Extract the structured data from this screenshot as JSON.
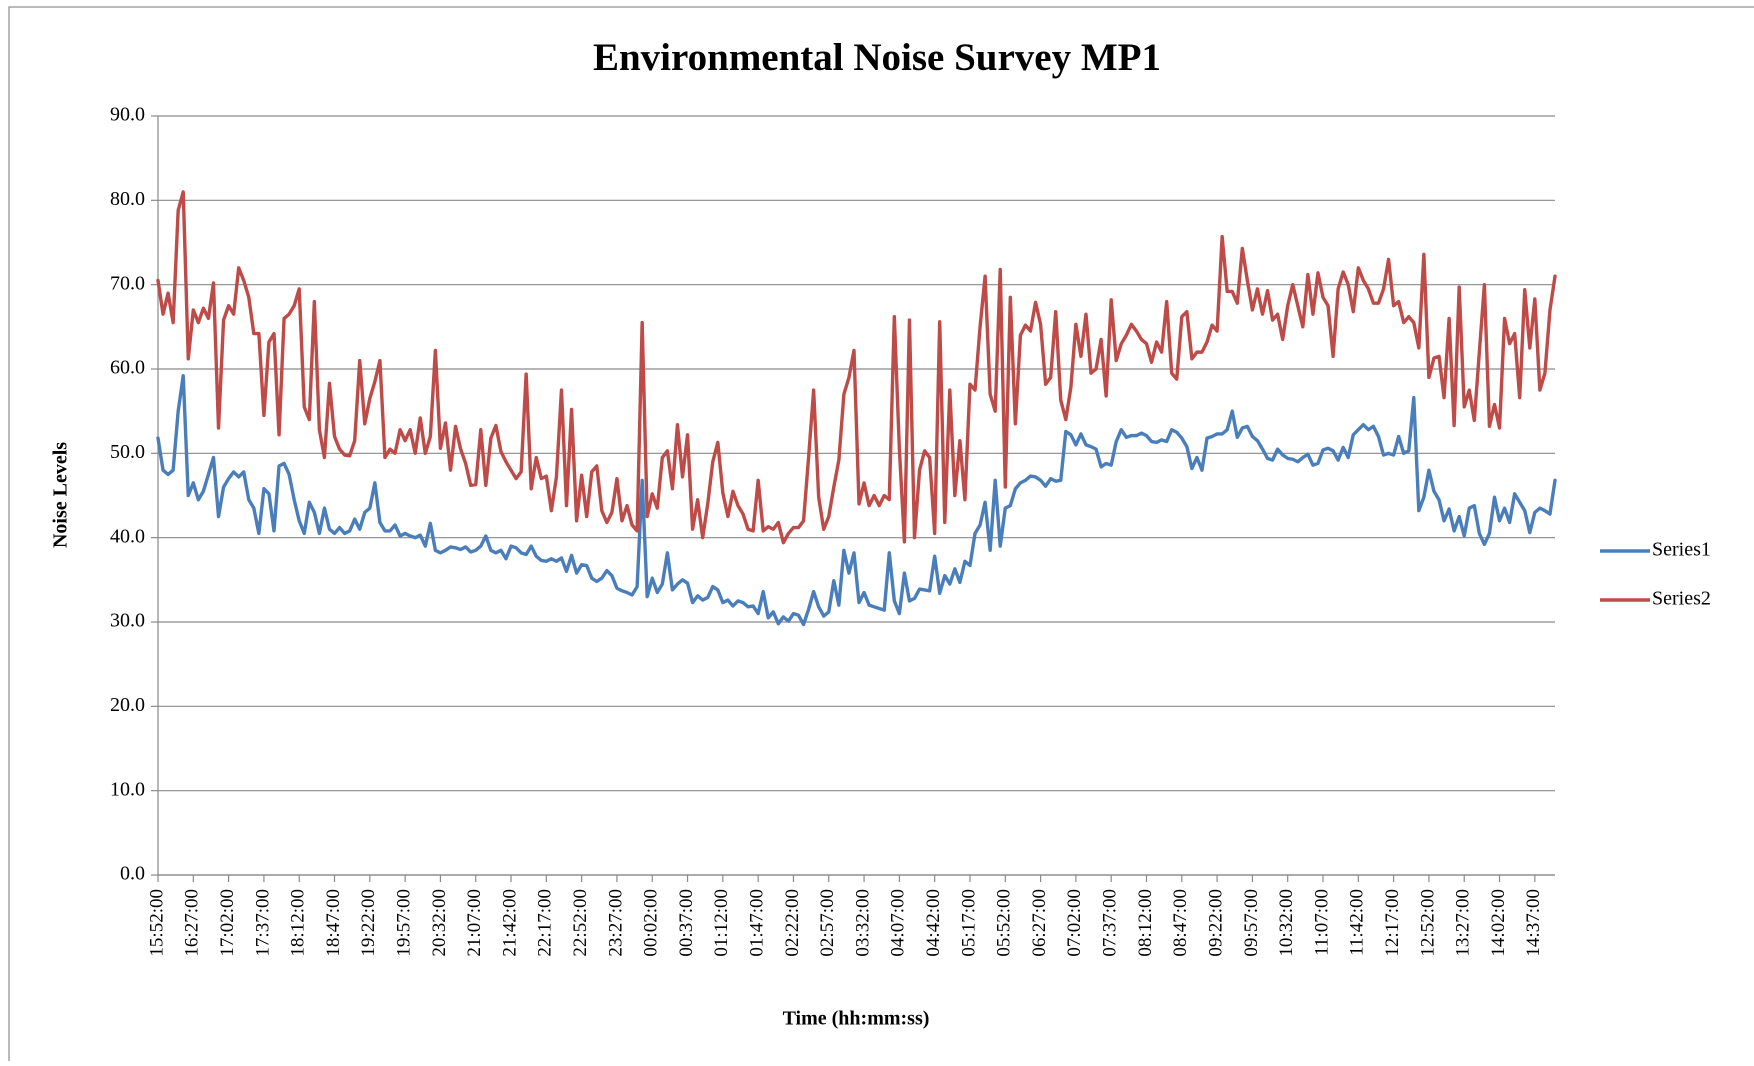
{
  "chart_data": {
    "type": "line",
    "title": "Environmental Noise Survey MP1",
    "x_label": "Time (hh:mm:ss)",
    "y_label": "Noise Levels",
    "categories": [
      "15:52:00",
      null,
      null,
      null,
      null,
      null,
      null,
      "16:27:00",
      null,
      null,
      null,
      null,
      null,
      null,
      "17:02:00",
      null,
      null,
      null,
      null,
      null,
      null,
      "17:37:00",
      null,
      null,
      null,
      null,
      null,
      null,
      "18:12:00",
      null,
      null,
      null,
      null,
      null,
      null,
      "18:47:00",
      null,
      null,
      null,
      null,
      null,
      null,
      "19:22:00",
      null,
      null,
      null,
      null,
      null,
      null,
      "19:57:00",
      null,
      null,
      null,
      null,
      null,
      null,
      "20:32:00",
      null,
      null,
      null,
      null,
      null,
      null,
      "21:07:00",
      null,
      null,
      null,
      null,
      null,
      null,
      "21:42:00",
      null,
      null,
      null,
      null,
      null,
      null,
      "22:17:00",
      null,
      null,
      null,
      null,
      null,
      null,
      "22:52:00",
      null,
      null,
      null,
      null,
      null,
      null,
      "23:27:00",
      null,
      null,
      null,
      null,
      null,
      null,
      "00:02:00",
      null,
      null,
      null,
      null,
      null,
      null,
      "00:37:00",
      null,
      null,
      null,
      null,
      null,
      null,
      "01:12:00",
      null,
      null,
      null,
      null,
      null,
      null,
      "01:47:00",
      null,
      null,
      null,
      null,
      null,
      null,
      "02:22:00",
      null,
      null,
      null,
      null,
      null,
      null,
      "02:57:00",
      null,
      null,
      null,
      null,
      null,
      null,
      "03:32:00",
      null,
      null,
      null,
      null,
      null,
      null,
      "04:07:00",
      null,
      null,
      null,
      null,
      null,
      null,
      "04:42:00",
      null,
      null,
      null,
      null,
      null,
      null,
      "05:17:00",
      null,
      null,
      null,
      null,
      null,
      null,
      "05:52:00",
      null,
      null,
      null,
      null,
      null,
      null,
      "06:27:00",
      null,
      null,
      null,
      null,
      null,
      null,
      "07:02:00",
      null,
      null,
      null,
      null,
      null,
      null,
      "07:37:00",
      null,
      null,
      null,
      null,
      null,
      null,
      "08:12:00",
      null,
      null,
      null,
      null,
      null,
      null,
      "08:47:00",
      null,
      null,
      null,
      null,
      null,
      null,
      "09:22:00",
      null,
      null,
      null,
      null,
      null,
      null,
      "09:57:00",
      null,
      null,
      null,
      null,
      null,
      null,
      "10:32:00",
      null,
      null,
      null,
      null,
      null,
      null,
      "11:07:00",
      null,
      null,
      null,
      null,
      null,
      null,
      "11:42:00",
      null,
      null,
      null,
      null,
      null,
      null,
      "12:17:00",
      null,
      null,
      null,
      null,
      null,
      null,
      "12:52:00",
      null,
      null,
      null,
      null,
      null,
      null,
      "13:27:00",
      null,
      null,
      null,
      null,
      null,
      null,
      "14:02:00",
      null,
      null,
      null,
      null,
      null,
      null,
      "14:37:00",
      null,
      null,
      null,
      null
    ],
    "series": [
      {
        "name": "Series1",
        "color": "#4a7ebb",
        "values": [
          51.8,
          48,
          47.5,
          48,
          55,
          59.2,
          45,
          46.5,
          44.5,
          45.5,
          47.5,
          49.5,
          42.5,
          46,
          47,
          47.8,
          47.2,
          47.8,
          44.5,
          43.5,
          40.5,
          45.8,
          45.2,
          40.8,
          48.5,
          48.8,
          47.5,
          44.5,
          42,
          40.5,
          44.2,
          43,
          40.5,
          43.5,
          41,
          40.5,
          41.2,
          40.5,
          40.8,
          42.2,
          41,
          43,
          43.5,
          46.5,
          41.8,
          40.8,
          40.8,
          41.5,
          40.2,
          40.5,
          40.2,
          40,
          40.3,
          39,
          41.7,
          38.5,
          38.2,
          38.5,
          38.9,
          38.8,
          38.6,
          38.9,
          38.3,
          38.5,
          39,
          40.2,
          38.5,
          38.2,
          38.5,
          37.5,
          39,
          38.8,
          38.2,
          38,
          39,
          37.8,
          37.3,
          37.2,
          37.5,
          37.2,
          37.6,
          36,
          37.9,
          35.8,
          36.8,
          36.7,
          35.2,
          34.8,
          35.2,
          36.1,
          35.5,
          34,
          33.7,
          33.5,
          33.2,
          34.2,
          46.8,
          33,
          35.2,
          33.5,
          34.5,
          38.2,
          33.8,
          34.5,
          35,
          34.6,
          32.3,
          33.1,
          32.6,
          32.9,
          34.2,
          33.8,
          32.3,
          32.6,
          31.9,
          32.5,
          32.3,
          31.8,
          31.9,
          31,
          33.6,
          30.5,
          31.2,
          29.8,
          30.6,
          30.1,
          31,
          30.8,
          29.7,
          31.5,
          33.6,
          31.8,
          30.7,
          31.2,
          34.9,
          32,
          38.5,
          35.8,
          38.2,
          32.3,
          33.5,
          32,
          31.8,
          31.6,
          31.4,
          38.2,
          32.5,
          31,
          35.8,
          32.5,
          32.8,
          33.9,
          33.8,
          33.7,
          37.8,
          33.4,
          35.5,
          34.5,
          36.3,
          34.7,
          37.2,
          36.7,
          40.5,
          41.5,
          44.2,
          38.5,
          46.8,
          39,
          43.5,
          43.8,
          45.8,
          46.5,
          46.8,
          47.3,
          47.2,
          46.8,
          46.1,
          47,
          46.7,
          46.8,
          52.6,
          52.2,
          51,
          52.3,
          51,
          50.8,
          50.5,
          48.4,
          48.8,
          48.6,
          51.4,
          52.8,
          51.9,
          52.1,
          52.1,
          52.4,
          52.1,
          51.4,
          51.3,
          51.6,
          51.4,
          52.8,
          52.5,
          51.8,
          50.8,
          48.2,
          49.5,
          48,
          51.8,
          52,
          52.3,
          52.3,
          52.8,
          55,
          51.9,
          53,
          53.2,
          52,
          51.5,
          50.5,
          49.4,
          49.2,
          50.5,
          49.8,
          49.4,
          49.3,
          49,
          49.5,
          49.9,
          48.6,
          48.8,
          50.4,
          50.6,
          50.3,
          49.2,
          50.7,
          49.5,
          52.2,
          52.8,
          53.4,
          52.8,
          53.2,
          52,
          49.8,
          50,
          49.8,
          52,
          50,
          50.3,
          56.6,
          43.2,
          44.8,
          48,
          45.5,
          44.5,
          42,
          43.4,
          40.8,
          42.5,
          40.2,
          43.5,
          43.8,
          40.5,
          39.2,
          40.5,
          44.8,
          42,
          43.5,
          41.8,
          45.2,
          44.2,
          43.2,
          40.6,
          43,
          43.5,
          43.2,
          42.8,
          46.8
        ]
      },
      {
        "name": "Series2",
        "color": "#be4b48",
        "values": [
          70.5,
          66.5,
          69,
          65.5,
          78.8,
          81,
          61.2,
          67,
          65.5,
          67.2,
          66,
          70.2,
          53,
          65.8,
          67.5,
          66.5,
          72,
          70.5,
          68.5,
          64.2,
          64.2,
          54.5,
          63.2,
          64.2,
          52.2,
          66,
          66.5,
          67.5,
          69.5,
          55.5,
          54,
          68,
          52.8,
          49.5,
          58.3,
          52,
          50.5,
          49.8,
          49.7,
          51.5,
          61,
          53.5,
          56.5,
          58.5,
          61,
          49.5,
          50.5,
          50,
          52.8,
          51.5,
          52.8,
          50,
          54.2,
          50,
          52,
          62.2,
          50.6,
          53.6,
          48,
          53.2,
          50.5,
          48.8,
          46.2,
          46.3,
          52.8,
          46.2,
          51.8,
          53.3,
          50.2,
          49,
          48,
          47,
          47.8,
          59.4,
          45.8,
          49.5,
          47,
          47.3,
          43.2,
          47.2,
          57.5,
          43.8,
          55.2,
          42,
          47.4,
          42.5,
          47.8,
          48.5,
          43.2,
          41.8,
          43,
          47,
          42,
          43.8,
          41.5,
          40.8,
          65.5,
          42.5,
          45.2,
          43.5,
          49.5,
          50.3,
          45.8,
          53.4,
          47.2,
          52.2,
          41,
          44.5,
          40,
          44,
          49,
          51.3,
          45.3,
          42.5,
          45.5,
          43.8,
          42.8,
          41,
          40.8,
          46.8,
          40.8,
          41.3,
          41,
          41.8,
          39.4,
          40.5,
          41.2,
          41.2,
          42,
          49.5,
          57.5,
          44.8,
          41,
          42.5,
          46,
          49.2,
          57,
          59,
          62.2,
          44,
          46.5,
          43.8,
          45,
          43.8,
          45,
          44.5,
          66.2,
          50.5,
          39.5,
          65.8,
          40,
          48,
          50.3,
          49.5,
          40.5,
          65.6,
          41.8,
          57.5,
          45,
          51.5,
          44.5,
          58.2,
          57.5,
          65,
          71,
          57,
          55,
          71.8,
          46,
          68.5,
          53.5,
          64,
          65.2,
          64.5,
          67.9,
          65.3,
          58.2,
          59,
          66.8,
          56.3,
          54,
          57.8,
          65.3,
          61.5,
          66.5,
          59.5,
          60,
          63.5,
          56.8,
          68.2,
          61,
          63,
          64,
          65.3,
          64.5,
          63.5,
          63,
          60.8,
          63.2,
          62,
          68,
          59.5,
          58.8,
          66.2,
          66.8,
          61.2,
          62,
          62,
          63.2,
          65.2,
          64.5,
          75.7,
          69.2,
          69.2,
          67.8,
          74.3,
          70.5,
          67,
          69.5,
          66.5,
          69.3,
          65.8,
          66.5,
          63.5,
          67.5,
          70,
          67.5,
          65,
          71.2,
          66.5,
          71.4,
          68.5,
          67.5,
          61.5,
          69.5,
          71.5,
          70,
          66.8,
          72,
          70.5,
          69.5,
          67.8,
          67.8,
          69.5,
          73,
          67.5,
          68,
          65.5,
          66.2,
          65.5,
          62.5,
          73.6,
          59,
          61.3,
          61.5,
          56.6,
          66,
          53.3,
          69.7,
          55.5,
          57.5,
          53.9,
          62,
          70,
          53.2,
          55.8,
          53,
          66,
          63,
          64.2,
          56.6,
          69.4,
          62.5,
          68.3,
          57.5,
          59.5,
          67,
          71
        ]
      }
    ],
    "ylim": [
      0,
      90
    ],
    "yticks": [
      {
        "value": 0,
        "label": "0.0"
      },
      {
        "value": 10,
        "label": "10.0"
      },
      {
        "value": 20,
        "label": "20.0"
      },
      {
        "value": 30,
        "label": "30.0"
      },
      {
        "value": 40,
        "label": "40.0"
      },
      {
        "value": 50,
        "label": "50.0"
      },
      {
        "value": 60,
        "label": "60.0"
      },
      {
        "value": 70,
        "label": "70.0"
      },
      {
        "value": 80,
        "label": "80.0"
      },
      {
        "value": 90,
        "label": "90.0"
      }
    ],
    "grid": true,
    "legend": "right"
  }
}
